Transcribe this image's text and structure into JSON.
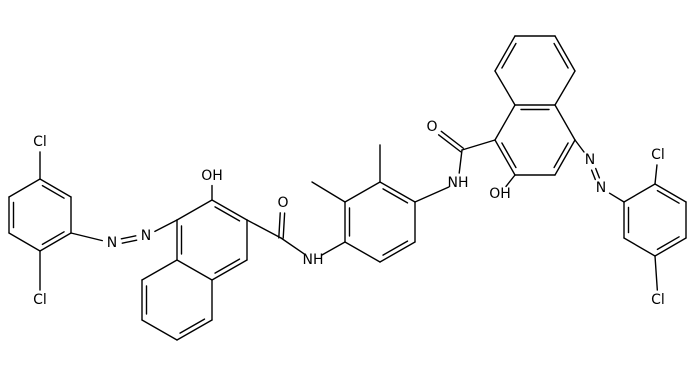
{
  "atoms": [
    {
      "label": "Cl"
    },
    {
      "label": "Cl"
    },
    {
      "label": "N"
    },
    {
      "label": "N"
    },
    {
      "label": "OH"
    },
    {
      "label": "O"
    },
    {
      "label": "NH"
    },
    {
      "label": "NH"
    },
    {
      "label": "O"
    },
    {
      "label": "OH"
    },
    {
      "label": "N"
    },
    {
      "label": "N"
    },
    {
      "label": "Cl"
    },
    {
      "label": "Cl"
    }
  ]
}
